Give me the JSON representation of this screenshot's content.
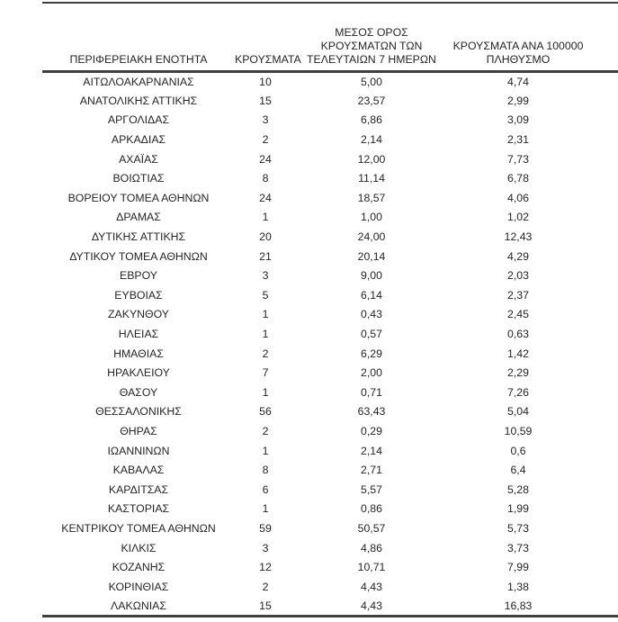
{
  "table": {
    "columns": [
      {
        "label": "ΠΕΡΙΦΕΡΕΙΑΚΗ ΕΝΟΤΗΤΑ"
      },
      {
        "label": "ΚΡΟΥΣΜΑΤΑ"
      },
      {
        "label": "ΜΕΣΟΣ ΟΡΟΣ\nΚΡΟΥΣΜΑΤΩΝ ΤΩΝ\nΤΕΛΕΥΤΑΙΩΝ 7 ΗΜΕΡΩΝ"
      },
      {
        "label": "ΚΡΟΥΣΜΑΤΑ ΑΝΑ 100000\nΠΛΗΘΥΣΜΟ"
      }
    ],
    "rows": [
      [
        "ΑΙΤΩΛΟΑΚΑΡΝΑΝΙΑΣ",
        "10",
        "5,00",
        "4,74"
      ],
      [
        "ΑΝΑΤΟΛΙΚΗΣ ΑΤΤΙΚΗΣ",
        "15",
        "23,57",
        "2,99"
      ],
      [
        "ΑΡΓΟΛΙΔΑΣ",
        "3",
        "6,86",
        "3,09"
      ],
      [
        "ΑΡΚΑΔΙΑΣ",
        "2",
        "2,14",
        "2,31"
      ],
      [
        "ΑΧΑΪΑΣ",
        "24",
        "12,00",
        "7,73"
      ],
      [
        "ΒΟΙΩΤΙΑΣ",
        "8",
        "11,14",
        "6,78"
      ],
      [
        "ΒΟΡΕΙΟΥ ΤΟΜΕΑ ΑΘΗΝΩΝ",
        "24",
        "18,57",
        "4,06"
      ],
      [
        "ΔΡΑΜΑΣ",
        "1",
        "1,00",
        "1,02"
      ],
      [
        "ΔΥΤΙΚΗΣ ΑΤΤΙΚΗΣ",
        "20",
        "24,00",
        "12,43"
      ],
      [
        "ΔΥΤΙΚΟΥ ΤΟΜΕΑ ΑΘΗΝΩΝ",
        "21",
        "20,14",
        "4,29"
      ],
      [
        "ΕΒΡΟΥ",
        "3",
        "9,00",
        "2,03"
      ],
      [
        "ΕΥΒΟΙΑΣ",
        "5",
        "6,14",
        "2,37"
      ],
      [
        "ΖΑΚΥΝΘΟΥ",
        "1",
        "0,43",
        "2,45"
      ],
      [
        "ΗΛΕΙΑΣ",
        "1",
        "0,57",
        "0,63"
      ],
      [
        "ΗΜΑΘΙΑΣ",
        "2",
        "6,29",
        "1,42"
      ],
      [
        "ΗΡΑΚΛΕΙΟΥ",
        "7",
        "2,00",
        "2,29"
      ],
      [
        "ΘΑΣΟΥ",
        "1",
        "0,71",
        "7,26"
      ],
      [
        "ΘΕΣΣΑΛΟΝΙΚΗΣ",
        "56",
        "63,43",
        "5,04"
      ],
      [
        "ΘΗΡΑΣ",
        "2",
        "0,29",
        "10,59"
      ],
      [
        "ΙΩΑΝΝΙΝΩΝ",
        "1",
        "2,14",
        "0,6"
      ],
      [
        "ΚΑΒΑΛΑΣ",
        "8",
        "2,71",
        "6,4"
      ],
      [
        "ΚΑΡΔΙΤΣΑΣ",
        "6",
        "5,57",
        "5,28"
      ],
      [
        "ΚΑΣΤΟΡΙΑΣ",
        "1",
        "0,86",
        "1,99"
      ],
      [
        "ΚΕΝΤΡΙΚΟΥ ΤΟΜΕΑ ΑΘΗΝΩΝ",
        "59",
        "50,57",
        "5,73"
      ],
      [
        "ΚΙΛΚΙΣ",
        "3",
        "4,86",
        "3,73"
      ],
      [
        "ΚΟΖΑΝΗΣ",
        "12",
        "10,71",
        "7,99"
      ],
      [
        "ΚΟΡΙΝΘΙΑΣ",
        "2",
        "4,43",
        "1,38"
      ],
      [
        "ΛΑΚΩΝΙΑΣ",
        "15",
        "4,43",
        "16,83"
      ]
    ]
  },
  "colors": {
    "text": "#262626",
    "rule": "#3f3f3f",
    "background": "#ffffff"
  }
}
